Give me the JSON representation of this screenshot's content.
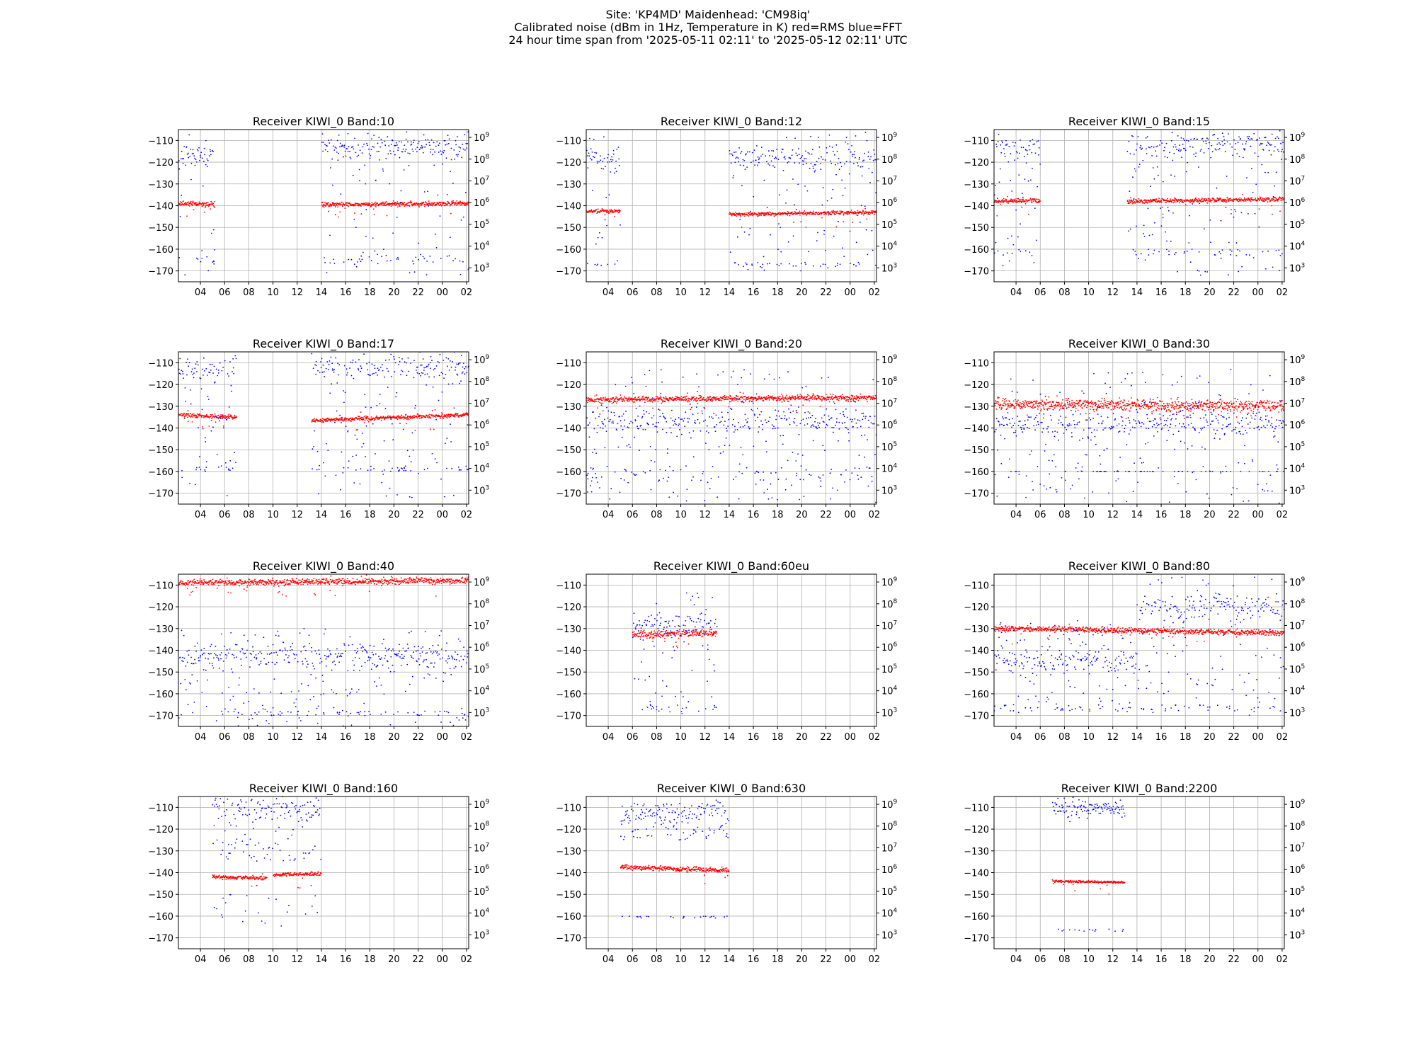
{
  "figure": {
    "title_lines": [
      "Site: 'KP4MD' Maidenhead: 'CM98iq'",
      "Calibrated noise (dBm in 1Hz, Temperature in K) red=RMS blue=FFT",
      "24 hour time span from '2025-05-11 02:11' to '2025-05-12 02:11' UTC"
    ]
  },
  "colors": {
    "rms": "#ff0000",
    "fft": "#0000ff",
    "grid": "#b0b0b0",
    "axis": "#000000"
  },
  "axes": {
    "x_ticks": [
      "04",
      "06",
      "08",
      "10",
      "12",
      "14",
      "16",
      "18",
      "20",
      "22",
      "00",
      "02"
    ],
    "x_tick_hours": [
      4,
      6,
      8,
      10,
      12,
      14,
      16,
      18,
      20,
      22,
      24,
      26
    ],
    "xlim_hours": [
      2.18,
      26.18
    ],
    "y_ticks": [
      -110,
      -120,
      -130,
      -140,
      -150,
      -160,
      -170
    ],
    "ylim": [
      -175,
      -105
    ],
    "y2_tick_mantissa": "10",
    "y2_tick_exponents": [
      "3",
      "4",
      "5",
      "6",
      "7",
      "8",
      "9"
    ],
    "y2_tick_kelvin": [
      1000,
      10000,
      100000,
      1000000,
      10000000,
      100000000,
      1000000000
    ],
    "y2_scale": "log"
  },
  "chart_data": [
    {
      "type": "scatter",
      "title": "Receiver KIWI_0   Band:10",
      "series": [
        {
          "color": "red",
          "segments": [
            {
              "x": [
                2.2,
                5.2
              ],
              "y": [
                -139,
                -139.5
              ]
            },
            {
              "x": [
                14.0,
                26.2
              ],
              "y": [
                -139.5,
                -139
              ]
            }
          ],
          "scatter": 0.8
        },
        {
          "color": "blue",
          "segments": [
            {
              "x": [
                2.2,
                5.2
              ],
              "ymin": -172,
              "ymax": -106,
              "center": -118
            },
            {
              "x": [
                14.0,
                26.2
              ],
              "ymin": -172,
              "ymax": -106,
              "center": -113
            }
          ],
          "low_band": [
            -163,
            -167
          ]
        }
      ]
    },
    {
      "type": "scatter",
      "title": "Receiver KIWI_0   Band:12",
      "series": [
        {
          "color": "red",
          "segments": [
            {
              "x": [
                2.2,
                5.0
              ],
              "y": [
                -142.5,
                -142.5
              ]
            },
            {
              "x": [
                14.0,
                26.2
              ],
              "y": [
                -144,
                -143
              ]
            }
          ],
          "scatter": 0.6
        },
        {
          "color": "blue",
          "segments": [
            {
              "x": [
                2.2,
                5.0
              ],
              "ymin": -170,
              "ymax": -106,
              "center": -118
            },
            {
              "x": [
                14.0,
                26.2
              ],
              "ymin": -170,
              "ymax": -106,
              "center": -118
            }
          ],
          "low_band": [
            -166,
            -168
          ]
        }
      ]
    },
    {
      "type": "scatter",
      "title": "Receiver KIWI_0   Band:15",
      "series": [
        {
          "color": "red",
          "segments": [
            {
              "x": [
                2.2,
                6.0
              ],
              "y": [
                -138,
                -137.5
              ]
            },
            {
              "x": [
                13.2,
                26.2
              ],
              "y": [
                -138,
                -137
              ]
            }
          ],
          "scatter": 0.7
        },
        {
          "color": "blue",
          "segments": [
            {
              "x": [
                2.2,
                6.0
              ],
              "ymin": -168,
              "ymax": -106,
              "center": -113
            },
            {
              "x": [
                13.2,
                26.2
              ],
              "ymin": -172,
              "ymax": -106,
              "center": -112
            }
          ],
          "low_band": [
            -160,
            -163
          ]
        }
      ]
    },
    {
      "type": "scatter",
      "title": "Receiver KIWI_0   Band:17",
      "series": [
        {
          "color": "red",
          "segments": [
            {
              "x": [
                2.2,
                7.0
              ],
              "y": [
                -134,
                -135
              ]
            },
            {
              "x": [
                13.2,
                26.2
              ],
              "y": [
                -136.5,
                -134
              ]
            }
          ],
          "scatter": 0.7
        },
        {
          "color": "blue",
          "segments": [
            {
              "x": [
                2.2,
                7.0
              ],
              "ymin": -172,
              "ymax": -106,
              "center": -113
            },
            {
              "x": [
                13.2,
                26.2
              ],
              "ymin": -172,
              "ymax": -106,
              "center": -112
            }
          ],
          "low_band": [
            -158,
            -160
          ]
        }
      ]
    },
    {
      "type": "scatter",
      "title": "Receiver KIWI_0   Band:20",
      "series": [
        {
          "color": "red",
          "segments": [
            {
              "x": [
                2.2,
                26.2
              ],
              "y": [
                -127,
                -126
              ]
            }
          ],
          "scatter": 1.0
        },
        {
          "color": "blue",
          "segments": [
            {
              "x": [
                2.2,
                26.2
              ],
              "ymin": -175,
              "ymax": -113,
              "center": -137
            }
          ],
          "low_band": [
            -158,
            -165
          ]
        }
      ]
    },
    {
      "type": "scatter",
      "title": "Receiver KIWI_0   Band:30",
      "series": [
        {
          "color": "red",
          "segments": [
            {
              "x": [
                2.2,
                26.2
              ],
              "y": [
                -129,
                -130
              ]
            }
          ],
          "scatter": 2.0
        },
        {
          "color": "blue",
          "segments": [
            {
              "x": [
                2.2,
                26.2
              ],
              "ymin": -175,
              "ymax": -113,
              "center": -138
            }
          ],
          "low_band": [
            -160,
            -160
          ]
        }
      ]
    },
    {
      "type": "scatter",
      "title": "Receiver KIWI_0   Band:40",
      "series": [
        {
          "color": "red",
          "segments": [
            {
              "x": [
                2.2,
                26.2
              ],
              "y": [
                -109,
                -108
              ]
            }
          ],
          "scatter": 1.0
        },
        {
          "color": "blue",
          "segments": [
            {
              "x": [
                2.2,
                26.2
              ],
              "ymin": -175,
              "ymax": -130,
              "center": -143
            }
          ],
          "low_band": [
            -168,
            -170
          ]
        }
      ]
    },
    {
      "type": "scatter",
      "title": "Receiver KIWI_0   Band:60eu",
      "series": [
        {
          "color": "red",
          "segments": [
            {
              "x": [
                6.0,
                13.0
              ],
              "y": [
                -133,
                -132
              ]
            }
          ],
          "scatter": 1.2
        },
        {
          "color": "blue",
          "segments": [
            {
              "x": [
                6.0,
                13.0
              ],
              "ymin": -170,
              "ymax": -113,
              "center": -128
            }
          ],
          "low_band": [
            -165,
            -168
          ]
        }
      ]
    },
    {
      "type": "scatter",
      "title": "Receiver KIWI_0   Band:80",
      "series": [
        {
          "color": "red",
          "segments": [
            {
              "x": [
                2.2,
                26.2
              ],
              "y": [
                -130,
                -132
              ]
            }
          ],
          "scatter": 0.9
        },
        {
          "color": "blue",
          "segments": [
            {
              "x": [
                2.2,
                14.0
              ],
              "ymin": -170,
              "ymax": -125,
              "center": -145
            },
            {
              "x": [
                14.0,
                26.2
              ],
              "ymin": -170,
              "ymax": -106,
              "center": -120
            }
          ],
          "low_band": [
            -165,
            -168
          ]
        }
      ]
    },
    {
      "type": "scatter",
      "title": "Receiver KIWI_0   Band:160",
      "series": [
        {
          "color": "red",
          "segments": [
            {
              "x": [
                5.0,
                9.5
              ],
              "y": [
                -142,
                -142.5
              ]
            },
            {
              "x": [
                10.0,
                14.0
              ],
              "y": [
                -141,
                -140.5
              ]
            }
          ],
          "scatter": 0.6
        },
        {
          "color": "blue",
          "segments": [
            {
              "x": [
                5.0,
                14.0
              ],
              "ymin": -135,
              "ymax": -106,
              "center": -110
            }
          ],
          "low_band": [
            -150,
            -165
          ]
        }
      ]
    },
    {
      "type": "scatter",
      "title": "Receiver KIWI_0   Band:630",
      "series": [
        {
          "color": "red",
          "segments": [
            {
              "x": [
                5.0,
                14.0
              ],
              "y": [
                -137.5,
                -139
              ]
            }
          ],
          "scatter": 0.8
        },
        {
          "color": "blue",
          "segments": [
            {
              "x": [
                5.0,
                14.0
              ],
              "ymin": -125,
              "ymax": -108,
              "center": -113
            }
          ],
          "low_band": [
            -160,
            -161
          ]
        }
      ]
    },
    {
      "type": "scatter",
      "title": "Receiver KIWI_0   Band:2200",
      "series": [
        {
          "color": "red",
          "segments": [
            {
              "x": [
                7.0,
                13.0
              ],
              "y": [
                -144,
                -144.5
              ]
            }
          ],
          "scatter": 0.4
        },
        {
          "color": "blue",
          "segments": [
            {
              "x": [
                7.0,
                13.0
              ],
              "ymin": -113,
              "ymax": -109,
              "center": -110
            }
          ],
          "low_band": [
            -166,
            -167
          ]
        }
      ]
    }
  ]
}
